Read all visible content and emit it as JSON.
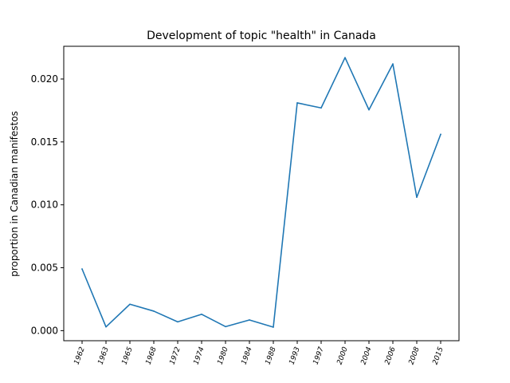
{
  "chart_data": {
    "type": "line",
    "title": "Development of topic \"health\" in Canada",
    "xlabel": "",
    "ylabel": "proportion in Canadian manifestos",
    "categories": [
      "1962",
      "1963",
      "1965",
      "1968",
      "1972",
      "1974",
      "1980",
      "1984",
      "1988",
      "1993",
      "1997",
      "2000",
      "2004",
      "2006",
      "2008",
      "2015"
    ],
    "series": [
      {
        "values": [
          0.0049,
          0.0003,
          0.0021,
          0.00155,
          0.0007,
          0.0013,
          0.00032,
          0.00085,
          0.00028,
          0.0181,
          0.0177,
          0.0217,
          0.01755,
          0.0212,
          0.0106,
          0.0156
        ],
        "color": "#1f77b4"
      }
    ],
    "yticks": [
      "0.000",
      "0.005",
      "0.010",
      "0.015",
      "0.020"
    ],
    "ylim": [
      -0.0008,
      0.0226
    ],
    "grid": false,
    "legend": "none"
  }
}
